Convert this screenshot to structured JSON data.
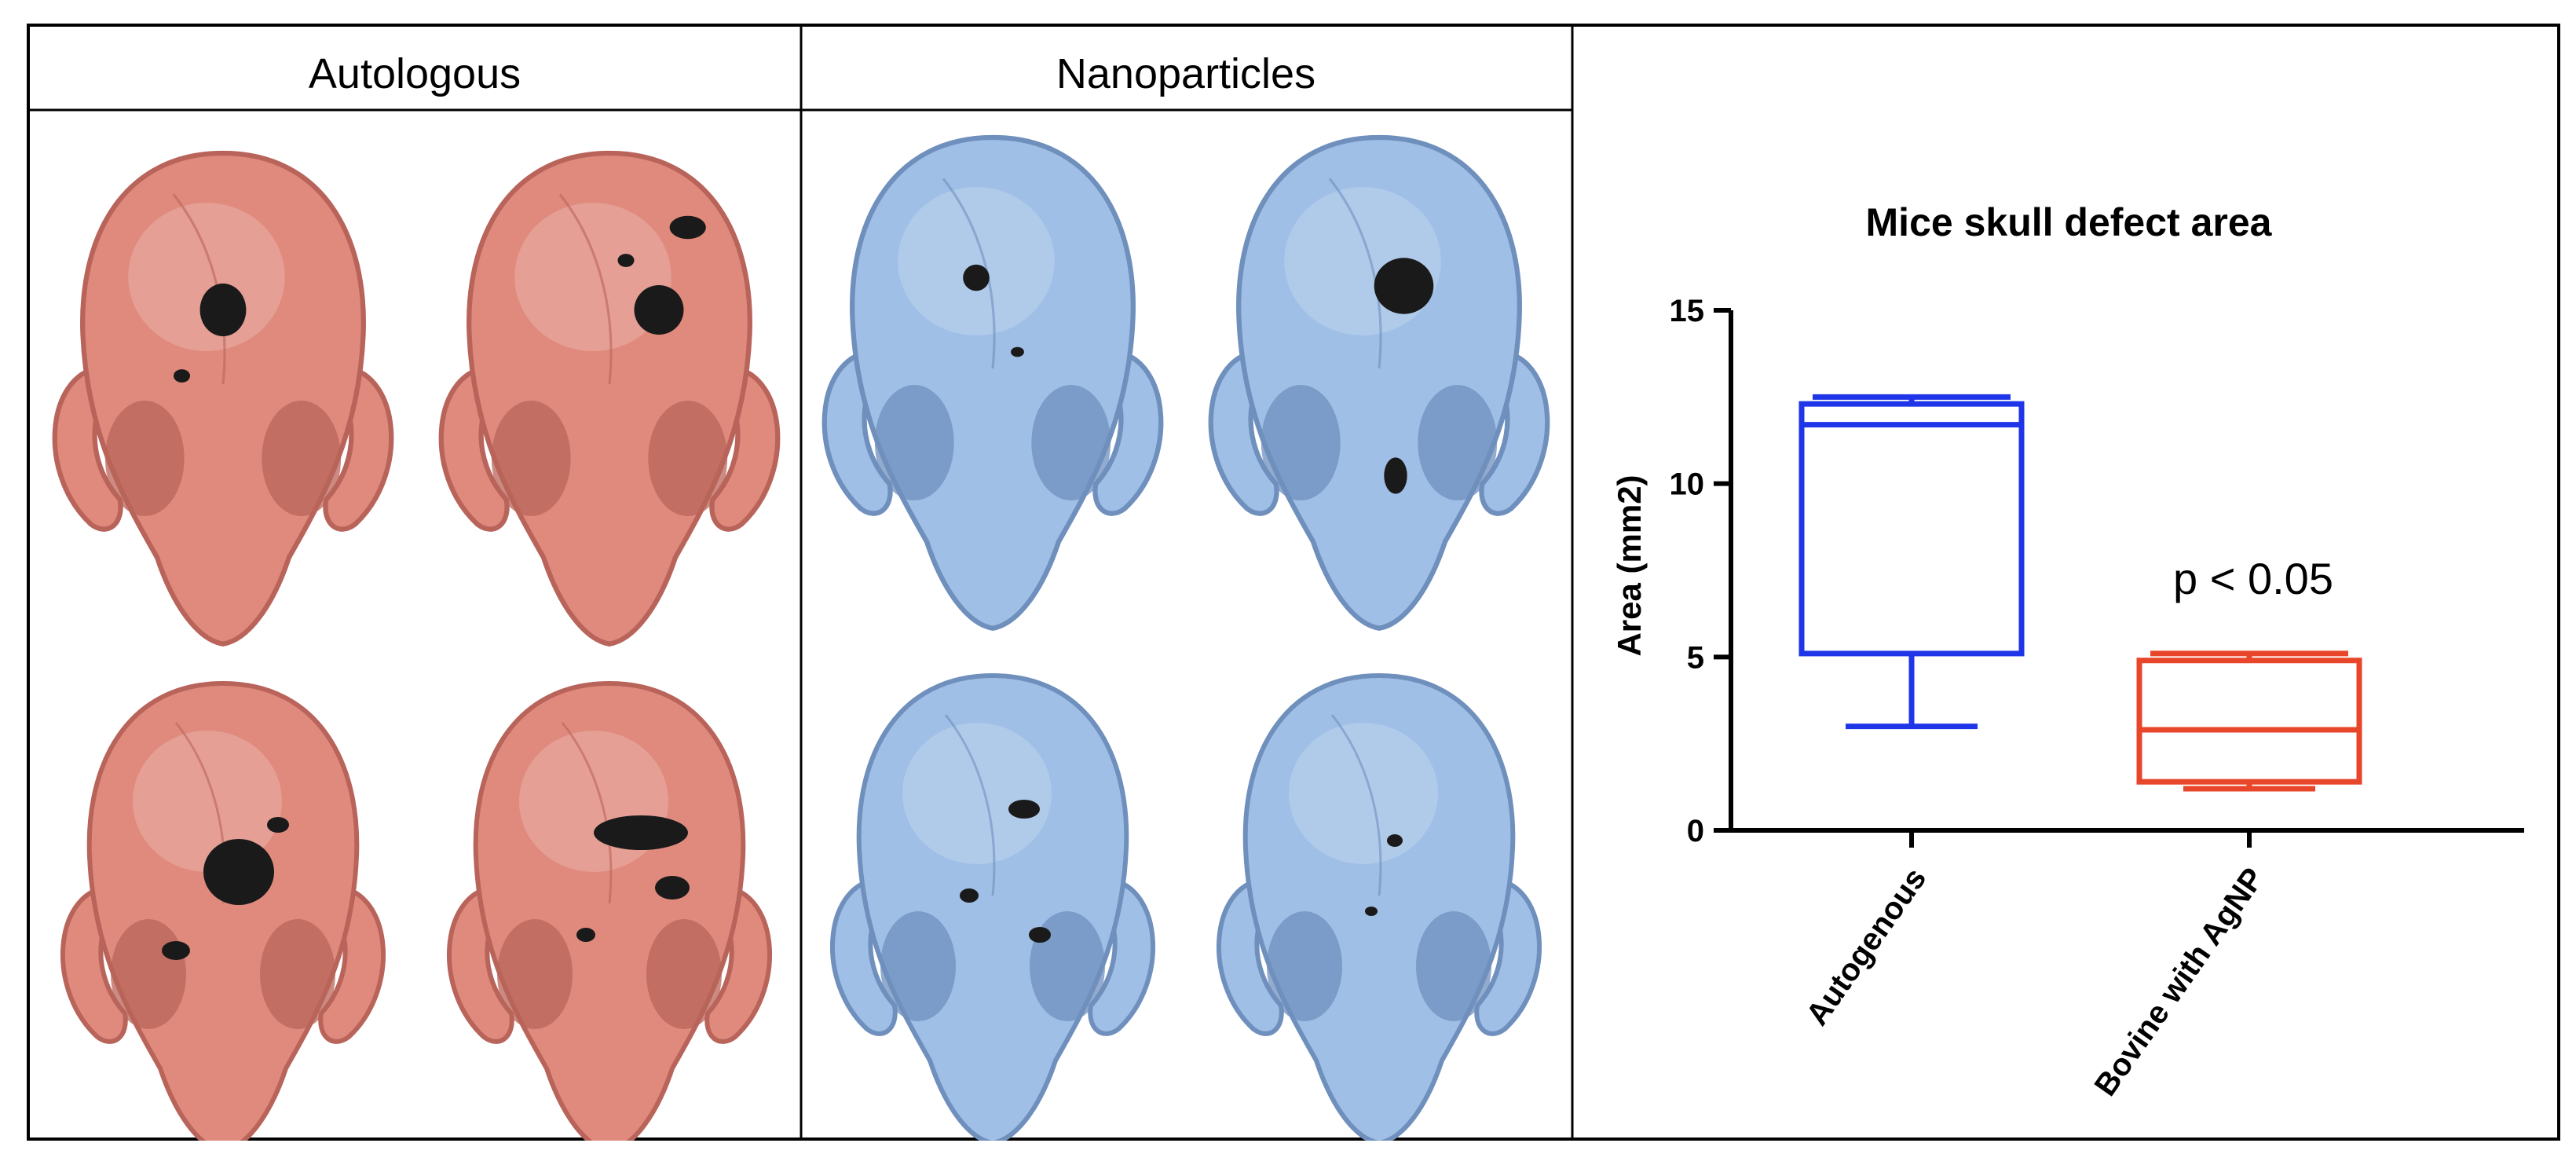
{
  "panels": {
    "autologous": {
      "title": "Autologous",
      "color": "#e08a7d",
      "shade": "#b9645a",
      "tissue_labels": []
    },
    "nanoparticles": {
      "title": "Nanoparticles",
      "color": "#9fbfe6",
      "shade": "#6f8fbd",
      "tissue_labels": []
    }
  },
  "chart_data": {
    "type": "box",
    "title": "Mice skull defect area",
    "xlabel": "",
    "ylabel": "Area (mm2)",
    "ylim": [
      0,
      15
    ],
    "yticks": [
      0,
      5,
      10,
      15
    ],
    "categories": [
      "Autogenous",
      "Bovine with AgNP"
    ],
    "series": [
      {
        "min": 3.0,
        "q1": 5.1,
        "median": 11.7,
        "q3": 12.3,
        "max": 12.5,
        "color": "#1f35e8"
      },
      {
        "min": 1.2,
        "q1": 1.4,
        "median": 2.9,
        "q3": 4.9,
        "max": 5.1,
        "color": "#e8462a"
      }
    ],
    "annotation": "p < 0.05",
    "grid": false
  }
}
